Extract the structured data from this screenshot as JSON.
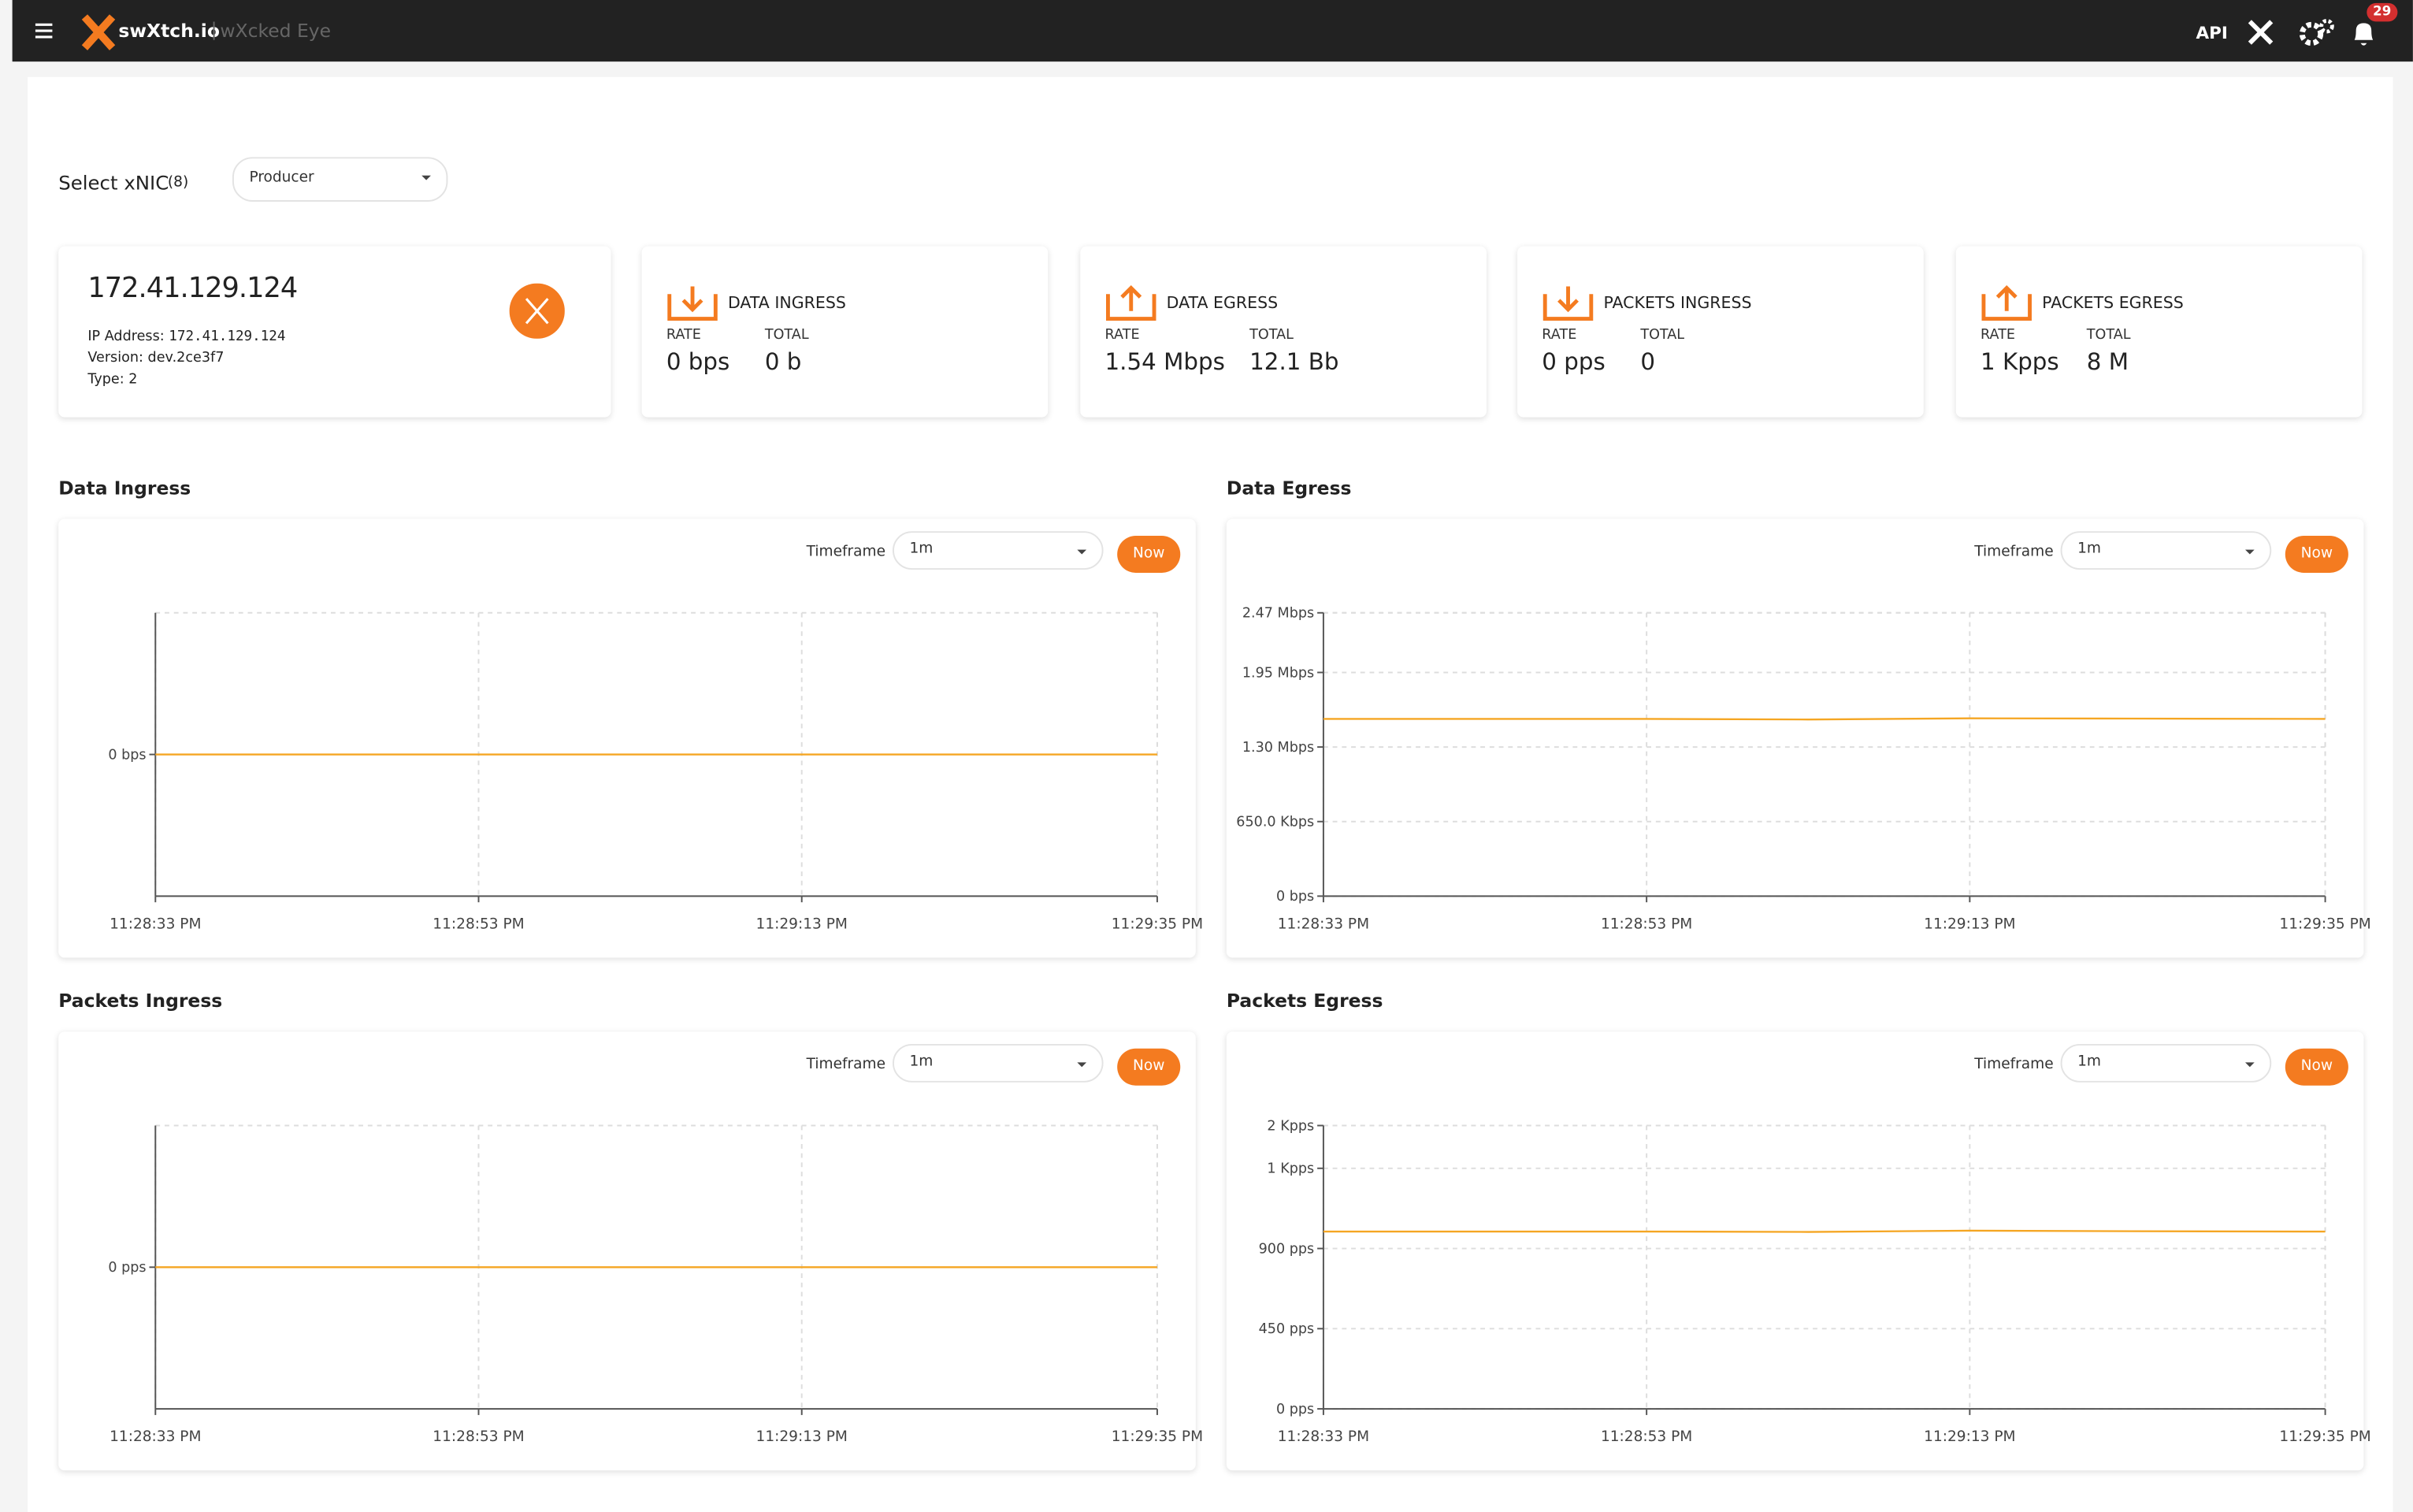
{
  "header": {
    "brand": "swXtch.io",
    "product": "wXcked Eye",
    "api": "API",
    "notifications": "29"
  },
  "select": {
    "label": "Select xNIC",
    "count": "(8)",
    "value": "Producer"
  },
  "device": {
    "ip": "172.41.129.124",
    "fields": [
      {
        "label": "IP Address:",
        "value": "172.41.129.124"
      },
      {
        "label": "Version:",
        "value": "dev.2ce3f7"
      },
      {
        "label": "Type:",
        "value": "2"
      }
    ]
  },
  "stats": [
    {
      "title": "DATA INGRESS",
      "rate_label": "RATE",
      "rate": "0 bps",
      "total_label": "TOTAL",
      "total": "0 b"
    },
    {
      "title": "DATA EGRESS",
      "rate_label": "RATE",
      "rate": "1.54 Mbps",
      "total_label": "TOTAL",
      "total": "12.1 Bb"
    },
    {
      "title": "PACKETS INGRESS",
      "rate_label": "RATE",
      "rate": "0 pps",
      "total_label": "TOTAL",
      "total": "0"
    },
    {
      "title": "PACKETS EGRESS",
      "rate_label": "RATE",
      "rate": "1 Kpps",
      "total_label": "TOTAL",
      "total": "8 M"
    }
  ],
  "charts": [
    {
      "type": "line",
      "title": "Data Ingress",
      "timeframe_label": "Timeframe",
      "timeframe": "1m",
      "button": "Now",
      "x": [
        0,
        10,
        20,
        30,
        40,
        50,
        62
      ],
      "xlim": [
        0,
        62
      ],
      "xticks": [
        {
          "value": 0,
          "label": "11:28:33 PM"
        },
        {
          "value": 20,
          "label": "11:28:53 PM"
        },
        {
          "value": 40,
          "label": "11:29:13 PM"
        },
        {
          "value": 62,
          "label": "11:29:35 PM"
        }
      ],
      "ylim": [
        -1,
        1
      ],
      "yticks": [
        {
          "value": 0,
          "label": "0 bps"
        }
      ],
      "grid": true,
      "series": [
        {
          "color": "#f5a623",
          "values": [
            0,
            0,
            0,
            0,
            0,
            0,
            0
          ]
        }
      ]
    },
    {
      "type": "line",
      "title": "Data Egress",
      "timeframe_label": "Timeframe",
      "timeframe": "1m",
      "button": "Now",
      "x": [
        0,
        10,
        20,
        30,
        40,
        50,
        62
      ],
      "xlim": [
        0,
        62
      ],
      "xticks": [
        {
          "value": 0,
          "label": "11:28:33 PM"
        },
        {
          "value": 20,
          "label": "11:28:53 PM"
        },
        {
          "value": 40,
          "label": "11:29:13 PM"
        },
        {
          "value": 62,
          "label": "11:29:35 PM"
        }
      ],
      "ylim": [
        0,
        2470000
      ],
      "yticks": [
        {
          "value": 0,
          "label": "0 bps"
        },
        {
          "value": 650000,
          "label": "650.0 Kbps"
        },
        {
          "value": 1300000,
          "label": "1.30 Mbps"
        },
        {
          "value": 1950000,
          "label": "1.95 Mbps"
        },
        {
          "value": 2470000,
          "label": "2.47 Mbps"
        }
      ],
      "grid": true,
      "series": [
        {
          "color": "#f5a623",
          "values": [
            1545000,
            1545000,
            1545000,
            1540000,
            1550000,
            1548000,
            1545000
          ]
        }
      ]
    },
    {
      "type": "line",
      "title": "Packets Ingress",
      "timeframe_label": "Timeframe",
      "timeframe": "1m",
      "button": "Now",
      "x": [
        0,
        10,
        20,
        30,
        40,
        50,
        62
      ],
      "xlim": [
        0,
        62
      ],
      "xticks": [
        {
          "value": 0,
          "label": "11:28:33 PM"
        },
        {
          "value": 20,
          "label": "11:28:53 PM"
        },
        {
          "value": 40,
          "label": "11:29:13 PM"
        },
        {
          "value": 62,
          "label": "11:29:35 PM"
        }
      ],
      "ylim": [
        -1,
        1
      ],
      "yticks": [
        {
          "value": 0,
          "label": "0 pps"
        }
      ],
      "grid": true,
      "series": [
        {
          "color": "#f5a623",
          "values": [
            0,
            0,
            0,
            0,
            0,
            0,
            0
          ]
        }
      ]
    },
    {
      "type": "line",
      "title": "Packets Egress",
      "timeframe_label": "Timeframe",
      "timeframe": "1m",
      "button": "Now",
      "x": [
        0,
        10,
        20,
        30,
        40,
        50,
        62
      ],
      "xlim": [
        0,
        62
      ],
      "xticks": [
        {
          "value": 0,
          "label": "11:28:33 PM"
        },
        {
          "value": 20,
          "label": "11:28:53 PM"
        },
        {
          "value": 40,
          "label": "11:29:13 PM"
        },
        {
          "value": 62,
          "label": "11:29:35 PM"
        }
      ],
      "ylim": [
        0,
        1590
      ],
      "yticks": [
        {
          "value": 0,
          "label": "0 pps"
        },
        {
          "value": 450,
          "label": "450 pps"
        },
        {
          "value": 900,
          "label": "900 pps"
        },
        {
          "value": 1350,
          "label": "1 Kpps"
        },
        {
          "value": 1590,
          "label": "2 Kpps"
        }
      ],
      "grid": true,
      "series": [
        {
          "color": "#f5a623",
          "values": [
            995,
            995,
            995,
            993,
            1000,
            997,
            995
          ]
        }
      ]
    }
  ]
}
